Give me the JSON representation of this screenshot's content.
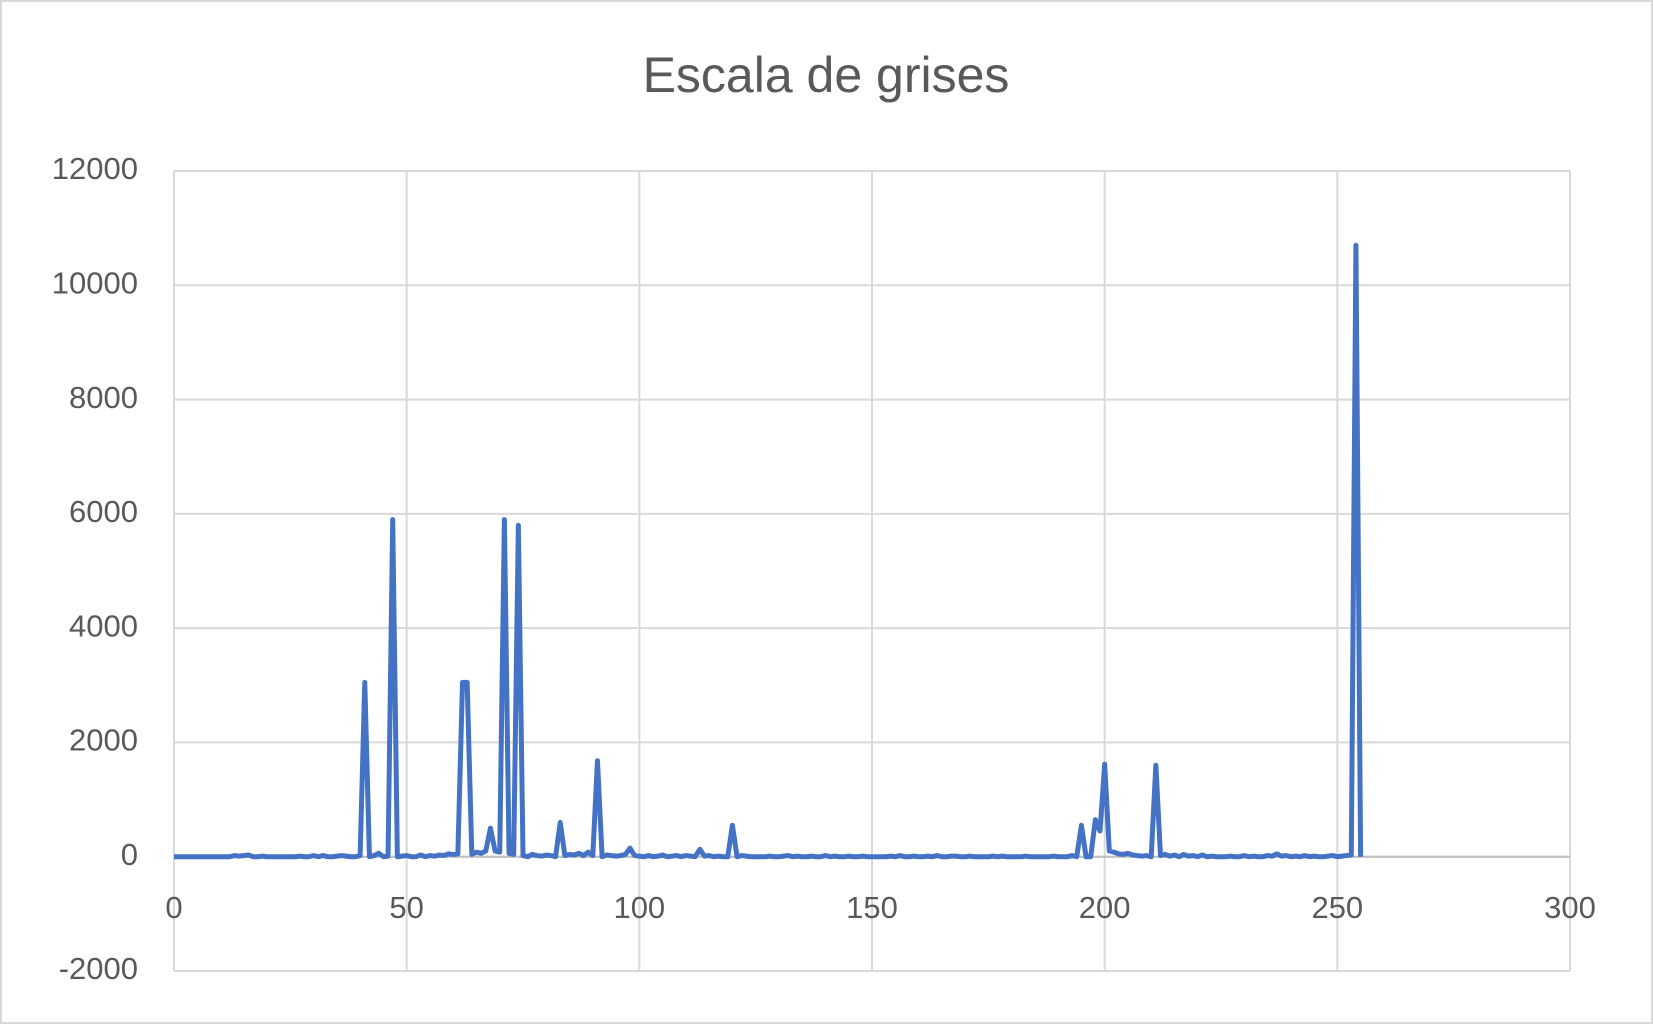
{
  "chart_data": {
    "type": "line",
    "title": "Escala de grises",
    "x": [
      0,
      1,
      2,
      3,
      4,
      5,
      6,
      7,
      8,
      9,
      10,
      11,
      12,
      13,
      14,
      15,
      16,
      17,
      18,
      19,
      20,
      21,
      22,
      23,
      24,
      25,
      26,
      27,
      28,
      29,
      30,
      31,
      32,
      33,
      34,
      35,
      36,
      37,
      38,
      39,
      40,
      41,
      42,
      43,
      44,
      45,
      46,
      47,
      48,
      49,
      50,
      51,
      52,
      53,
      54,
      55,
      56,
      57,
      58,
      59,
      60,
      61,
      62,
      63,
      64,
      65,
      66,
      67,
      68,
      69,
      70,
      71,
      72,
      73,
      74,
      75,
      76,
      77,
      78,
      79,
      80,
      81,
      82,
      83,
      84,
      85,
      86,
      87,
      88,
      89,
      90,
      91,
      92,
      93,
      94,
      95,
      96,
      97,
      98,
      99,
      100,
      101,
      102,
      103,
      104,
      105,
      106,
      107,
      108,
      109,
      110,
      111,
      112,
      113,
      114,
      115,
      116,
      117,
      118,
      119,
      120,
      121,
      122,
      123,
      124,
      125,
      126,
      127,
      128,
      129,
      130,
      131,
      132,
      133,
      134,
      135,
      136,
      137,
      138,
      139,
      140,
      141,
      142,
      143,
      144,
      145,
      146,
      147,
      148,
      149,
      150,
      151,
      152,
      153,
      154,
      155,
      156,
      157,
      158,
      159,
      160,
      161,
      162,
      163,
      164,
      165,
      166,
      167,
      168,
      169,
      170,
      171,
      172,
      173,
      174,
      175,
      176,
      177,
      178,
      179,
      180,
      181,
      182,
      183,
      184,
      185,
      186,
      187,
      188,
      189,
      190,
      191,
      192,
      193,
      194,
      195,
      196,
      197,
      198,
      199,
      200,
      201,
      202,
      203,
      204,
      205,
      206,
      207,
      208,
      209,
      210,
      211,
      212,
      213,
      214,
      215,
      216,
      217,
      218,
      219,
      220,
      221,
      222,
      223,
      224,
      225,
      226,
      227,
      228,
      229,
      230,
      231,
      232,
      233,
      234,
      235,
      236,
      237,
      238,
      239,
      240,
      241,
      242,
      243,
      244,
      245,
      246,
      247,
      248,
      249,
      250,
      251,
      252,
      253,
      254,
      255
    ],
    "series": [
      {
        "color": "#4472c4",
        "values": [
          0,
          0,
          0,
          0,
          0,
          0,
          0,
          0,
          0,
          0,
          0,
          0,
          0,
          20,
          10,
          20,
          30,
          0,
          0,
          10,
          0,
          0,
          0,
          0,
          0,
          0,
          0,
          10,
          0,
          0,
          20,
          0,
          20,
          0,
          0,
          10,
          20,
          10,
          0,
          0,
          20,
          3050,
          0,
          20,
          60,
          0,
          10,
          5900,
          0,
          10,
          20,
          0,
          0,
          30,
          0,
          20,
          10,
          30,
          20,
          50,
          40,
          50,
          3050,
          3050,
          40,
          80,
          60,
          100,
          500,
          100,
          80,
          5900,
          60,
          40,
          5800,
          20,
          0,
          40,
          20,
          10,
          30,
          20,
          0,
          600,
          20,
          40,
          30,
          60,
          20,
          80,
          20,
          1680,
          0,
          30,
          20,
          10,
          20,
          40,
          150,
          20,
          10,
          0,
          20,
          0,
          10,
          30,
          0,
          10,
          20,
          0,
          20,
          10,
          0,
          130,
          10,
          20,
          0,
          10,
          0,
          0,
          550,
          0,
          20,
          10,
          0,
          0,
          0,
          0,
          10,
          0,
          0,
          10,
          20,
          0,
          10,
          0,
          0,
          10,
          0,
          0,
          20,
          0,
          10,
          0,
          0,
          10,
          0,
          0,
          10,
          0,
          0,
          0,
          0,
          0,
          10,
          0,
          20,
          0,
          0,
          10,
          0,
          0,
          10,
          0,
          20,
          0,
          0,
          10,
          10,
          0,
          0,
          10,
          0,
          0,
          0,
          0,
          10,
          0,
          10,
          0,
          0,
          0,
          0,
          10,
          0,
          0,
          0,
          0,
          0,
          10,
          0,
          0,
          0,
          20,
          0,
          550,
          0,
          0,
          650,
          450,
          1620,
          100,
          80,
          50,
          40,
          60,
          30,
          20,
          10,
          20,
          0,
          1600,
          20,
          40,
          10,
          30,
          0,
          40,
          10,
          20,
          0,
          30,
          0,
          10,
          0,
          0,
          0,
          10,
          0,
          0,
          20,
          0,
          10,
          0,
          0,
          20,
          10,
          50,
          10,
          20,
          0,
          10,
          0,
          20,
          0,
          10,
          0,
          0,
          10,
          20,
          0,
          10,
          20,
          30,
          10700,
          0
        ]
      }
    ],
    "xlim": [
      0,
      300
    ],
    "xticks": [
      0,
      50,
      100,
      150,
      200,
      250,
      300
    ],
    "ylim": [
      -2000,
      12000
    ],
    "yticks": [
      -2000,
      0,
      2000,
      4000,
      6000,
      8000,
      10000,
      12000
    ],
    "grid": true
  }
}
